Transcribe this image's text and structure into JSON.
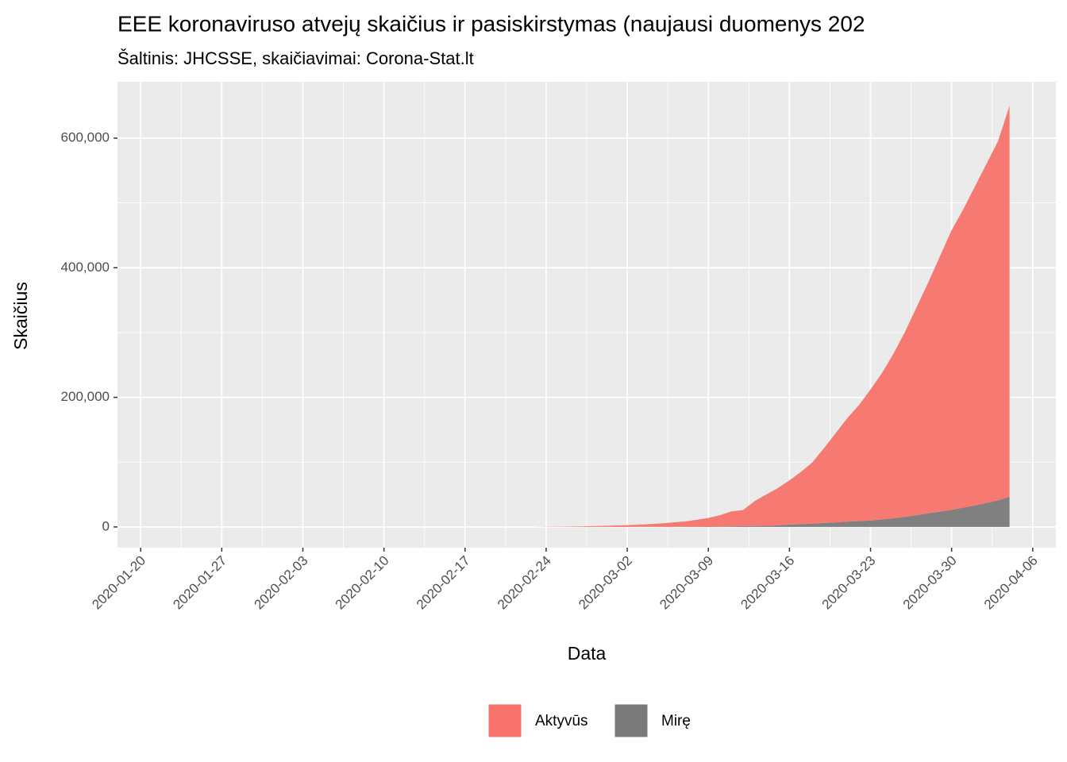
{
  "chart_data": {
    "type": "area",
    "title": "EEE koronaviruso atvejų skaičius ir pasiskirstymas (naujausi duomenys 202",
    "subtitle": "Šaltinis: JHCSSE, skaičiavimai: Corona-Stat.lt",
    "xlabel": "Data",
    "ylabel": "Skaičius",
    "stacked": true,
    "x": [
      "2020-02-23",
      "2020-02-24",
      "2020-02-25",
      "2020-02-26",
      "2020-02-27",
      "2020-02-28",
      "2020-02-29",
      "2020-03-01",
      "2020-03-02",
      "2020-03-03",
      "2020-03-04",
      "2020-03-05",
      "2020-03-06",
      "2020-03-07",
      "2020-03-08",
      "2020-03-09",
      "2020-03-10",
      "2020-03-11",
      "2020-03-12",
      "2020-03-13",
      "2020-03-14",
      "2020-03-15",
      "2020-03-16",
      "2020-03-17",
      "2020-03-18",
      "2020-03-19",
      "2020-03-20",
      "2020-03-21",
      "2020-03-22",
      "2020-03-23",
      "2020-03-24",
      "2020-03-25",
      "2020-03-26",
      "2020-03-27",
      "2020-03-28",
      "2020-03-29",
      "2020-03-30",
      "2020-03-31",
      "2020-04-01",
      "2020-04-02",
      "2020-04-03",
      "2020-04-04"
    ],
    "series": [
      {
        "name": "Aktyvūs",
        "color": "#f7736c",
        "values": [
          147,
          223,
          389,
          588,
          883,
          1279,
          1671,
          2266,
          2748,
          3421,
          4393,
          5352,
          6803,
          8266,
          10634,
          13500,
          17350,
          23150,
          24950,
          38650,
          48350,
          57700,
          68400,
          80700,
          94900,
          115900,
          138000,
          159800,
          178900,
          202000,
          226300,
          254500,
          286300,
          321800,
          357000,
          394300,
          431600,
          460200,
          491700,
          523000,
          554000,
          603500
        ]
      },
      {
        "name": "Mirę",
        "color": "#7a7a7a",
        "values": [
          3,
          7,
          11,
          12,
          17,
          21,
          29,
          34,
          52,
          79,
          107,
          148,
          197,
          234,
          366,
          500,
          650,
          850,
          1050,
          1350,
          1650,
          2300,
          3600,
          4300,
          5100,
          6100,
          7000,
          8200,
          9100,
          10000,
          11700,
          13500,
          15700,
          18200,
          21000,
          23700,
          26400,
          29800,
          33300,
          37000,
          41000,
          46500
        ]
      }
    ],
    "xlim": [
      "2020-01-18",
      "2020-04-08"
    ],
    "xticks": [
      "2020-01-20",
      "2020-01-27",
      "2020-02-03",
      "2020-02-10",
      "2020-02-17",
      "2020-02-24",
      "2020-03-02",
      "2020-03-09",
      "2020-03-16",
      "2020-03-23",
      "2020-03-30",
      "2020-04-06"
    ],
    "ylim": [
      -32000,
      687000
    ],
    "yticks": [
      0,
      {
        "value": 200000,
        "label": "200,000"
      },
      {
        "value": 400000,
        "label": "400,000"
      },
      {
        "value": 600000,
        "label": "600,000"
      }
    ],
    "grid": true,
    "legend": "bottom"
  }
}
